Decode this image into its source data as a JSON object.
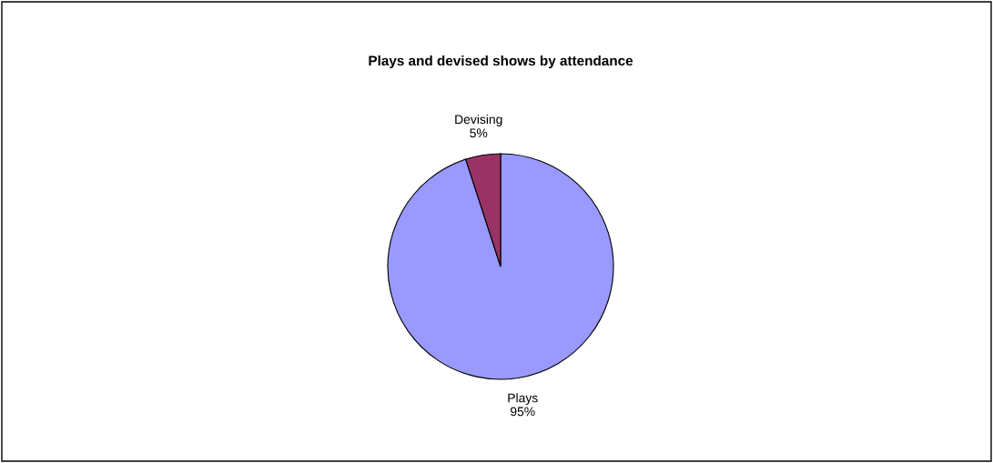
{
  "chart_data": {
    "type": "pie",
    "title": "Plays and devised shows by attendance",
    "categories": [
      "Plays",
      "Devising"
    ],
    "values": [
      95,
      5
    ],
    "value_labels": [
      "95%",
      "5%"
    ],
    "colors": [
      "#9999ff",
      "#993366"
    ],
    "legend": false
  }
}
